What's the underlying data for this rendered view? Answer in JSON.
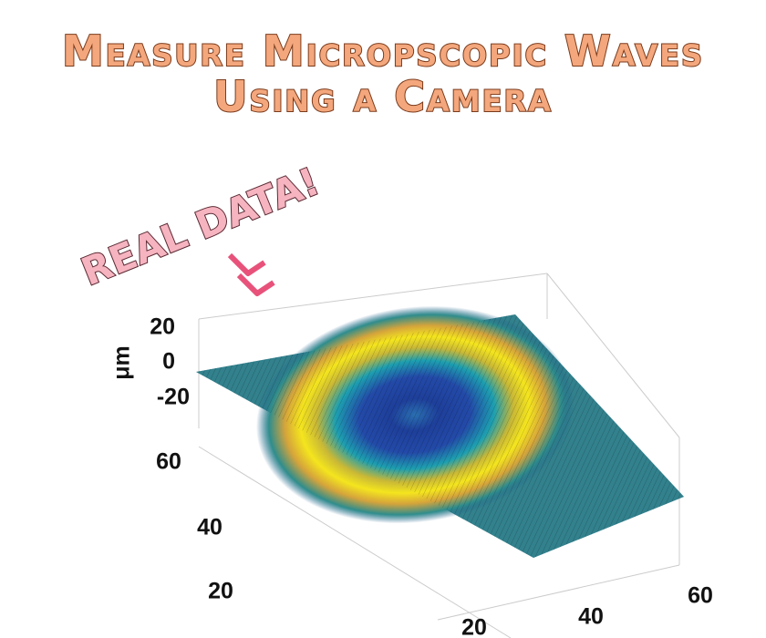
{
  "header": {
    "title_lines": [
      "Measure Micropscopic Waves",
      "Using a Camera"
    ]
  },
  "annotation": "REAL DATA!",
  "plot": {
    "z_label": "μm",
    "z_ticks": [
      "20",
      "0",
      "-20"
    ],
    "y_ticks": [
      "60",
      "40",
      "20"
    ],
    "x_ticks": [
      "60",
      "40",
      "20"
    ]
  }
}
